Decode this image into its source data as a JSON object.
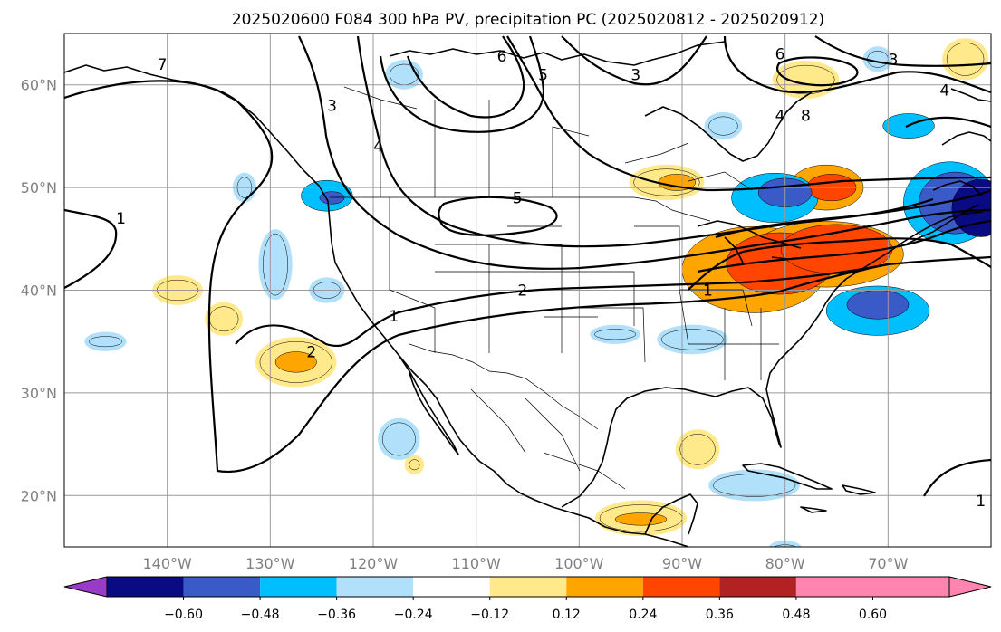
{
  "title": "2025020600 F084 300 hPa PV, precipitation PC (2025020812 - 2025020912)",
  "map": {
    "lon_range": [
      -150,
      -60
    ],
    "lat_range": [
      15,
      65
    ],
    "longitude_ticks": [
      {
        "lon": -140,
        "label": "140°W"
      },
      {
        "lon": -130,
        "label": "130°W"
      },
      {
        "lon": -120,
        "label": "120°W"
      },
      {
        "lon": -110,
        "label": "110°W"
      },
      {
        "lon": -100,
        "label": "100°W"
      },
      {
        "lon": -90,
        "label": "90°W"
      },
      {
        "lon": -80,
        "label": "80°W"
      },
      {
        "lon": -70,
        "label": "70°W"
      }
    ],
    "latitude_ticks": [
      {
        "lat": 20,
        "label": "20°N"
      },
      {
        "lat": 30,
        "label": "30°N"
      },
      {
        "lat": 40,
        "label": "40°N"
      },
      {
        "lat": 50,
        "label": "50°N"
      },
      {
        "lat": 60,
        "label": "60°N"
      }
    ],
    "gridlines": true
  },
  "colorbar": {
    "levels": [
      "−0.60",
      "−0.48",
      "−0.36",
      "−0.24",
      "−0.12",
      "0.12",
      "0.24",
      "0.36",
      "0.48",
      "0.60"
    ],
    "colors": [
      "#9a3bc8",
      "#0a0a82",
      "#3a5ac8",
      "#00bfff",
      "#b0e0fa",
      "#ffffff",
      "#ffe98a",
      "#ffa500",
      "#ff4500",
      "#b22222",
      "#ff85b0"
    ],
    "extend": "both"
  },
  "shading": [
    {
      "lon": -83,
      "lat": 42,
      "rx": 7,
      "ry": 4.2,
      "level": 0.36
    },
    {
      "lon": -80.5,
      "lat": 42.6,
      "rx": 5.2,
      "ry": 3,
      "level": 0.48
    },
    {
      "lon": -76,
      "lat": 43.5,
      "rx": 7.5,
      "ry": 3.2,
      "level": 0.36
    },
    {
      "lon": -75,
      "lat": 44,
      "rx": 5.4,
      "ry": 2.4,
      "level": 0.48
    },
    {
      "lon": -76,
      "lat": 50,
      "rx": 3.6,
      "ry": 2.2,
      "level": 0.36
    },
    {
      "lon": -75.5,
      "lat": 50,
      "rx": 2.4,
      "ry": 1.3,
      "level": 0.48
    },
    {
      "lon": -91.5,
      "lat": 50.5,
      "rx": 3.2,
      "ry": 1.3,
      "level": 0.24
    },
    {
      "lon": -90.5,
      "lat": 50.5,
      "rx": 1.8,
      "ry": 0.8,
      "level": 0.36
    },
    {
      "lon": -78,
      "lat": 60.5,
      "rx": 2.8,
      "ry": 1.4,
      "level": 0.24
    },
    {
      "lon": -62.5,
      "lat": 62.5,
      "rx": 1.8,
      "ry": 1.6,
      "level": 0.24
    },
    {
      "lon": -127.5,
      "lat": 33,
      "rx": 3.5,
      "ry": 2,
      "level": 0.24
    },
    {
      "lon": -127.5,
      "lat": 33,
      "rx": 2,
      "ry": 1,
      "level": 0.36
    },
    {
      "lon": -139,
      "lat": 40,
      "rx": 2,
      "ry": 1,
      "level": 0.24
    },
    {
      "lon": -134.5,
      "lat": 37.2,
      "rx": 1.4,
      "ry": 1.2,
      "level": 0.24
    },
    {
      "lon": -88.5,
      "lat": 24.5,
      "rx": 1.7,
      "ry": 1.5,
      "level": 0.24
    },
    {
      "lon": -94,
      "lat": 17.8,
      "rx": 4,
      "ry": 1.3,
      "level": 0.24
    },
    {
      "lon": -94,
      "lat": 17.7,
      "rx": 2.5,
      "ry": 0.6,
      "level": 0.36
    },
    {
      "lon": -116,
      "lat": 23,
      "rx": 0.5,
      "ry": 0.5,
      "level": 0.24
    },
    {
      "lon": -81,
      "lat": 49,
      "rx": 4.2,
      "ry": 2.4,
      "level": -0.36
    },
    {
      "lon": -80,
      "lat": 49.5,
      "rx": 2.6,
      "ry": 1.4,
      "level": -0.48
    },
    {
      "lon": -64,
      "lat": 48.5,
      "rx": 4.5,
      "ry": 4,
      "level": -0.36
    },
    {
      "lon": -63.5,
      "lat": 48.5,
      "rx": 3.5,
      "ry": 3,
      "level": -0.48
    },
    {
      "lon": -61,
      "lat": 48,
      "rx": 2.8,
      "ry": 2.8,
      "level": -0.6
    },
    {
      "lon": -71,
      "lat": 38,
      "rx": 5,
      "ry": 2.4,
      "level": -0.36
    },
    {
      "lon": -71,
      "lat": 38.6,
      "rx": 3,
      "ry": 1.4,
      "level": -0.48
    },
    {
      "lon": -124.5,
      "lat": 49.2,
      "rx": 2.5,
      "ry": 1.5,
      "level": -0.36
    },
    {
      "lon": -124,
      "lat": 49,
      "rx": 1.2,
      "ry": 0.6,
      "level": -0.48
    },
    {
      "lon": -124.5,
      "lat": 40,
      "rx": 1.3,
      "ry": 0.8,
      "level": -0.24
    },
    {
      "lon": -129.5,
      "lat": 42.5,
      "rx": 1.2,
      "ry": 3,
      "level": -0.24
    },
    {
      "lon": -117.5,
      "lat": 25.5,
      "rx": 1.6,
      "ry": 1.6,
      "level": -0.24
    },
    {
      "lon": -89,
      "lat": 35.2,
      "rx": 3,
      "ry": 1,
      "level": -0.24
    },
    {
      "lon": -96.5,
      "lat": 35.7,
      "rx": 2,
      "ry": 0.5,
      "level": -0.24
    },
    {
      "lon": -83,
      "lat": 21,
      "rx": 4,
      "ry": 1.1,
      "level": -0.24
    },
    {
      "lon": -86,
      "lat": 56,
      "rx": 1.4,
      "ry": 0.9,
      "level": -0.24
    },
    {
      "lon": -117,
      "lat": 61,
      "rx": 1.4,
      "ry": 1,
      "level": -0.24
    },
    {
      "lon": -68,
      "lat": 56,
      "rx": 2.5,
      "ry": 1.2,
      "level": -0.36
    },
    {
      "lon": -71,
      "lat": 62.5,
      "rx": 1,
      "ry": 0.8,
      "level": -0.24
    },
    {
      "lon": -132.5,
      "lat": 50,
      "rx": 0.7,
      "ry": 1,
      "level": -0.24
    },
    {
      "lon": -146,
      "lat": 35,
      "rx": 1.6,
      "ry": 0.5,
      "level": -0.24
    },
    {
      "lon": -80,
      "lat": 14.8,
      "rx": 1.2,
      "ry": 0.4,
      "level": -0.24
    }
  ],
  "pv_contour_labels": [
    {
      "text": "1",
      "lon": -144.5,
      "lat": 47
    },
    {
      "text": "1",
      "lon": -87.5,
      "lat": 40
    },
    {
      "text": "1",
      "lon": -61,
      "lat": 19.5
    },
    {
      "text": "2",
      "lon": -126,
      "lat": 34
    },
    {
      "text": "2",
      "lon": -105.5,
      "lat": 40
    },
    {
      "text": "3",
      "lon": -124,
      "lat": 58
    },
    {
      "text": "3",
      "lon": -94.5,
      "lat": 61
    },
    {
      "text": "3",
      "lon": -69.5,
      "lat": 62.5
    },
    {
      "text": "4",
      "lon": -119.5,
      "lat": 54
    },
    {
      "text": "4",
      "lon": -80.5,
      "lat": 57
    },
    {
      "text": "4",
      "lon": -64.5,
      "lat": 59.5
    },
    {
      "text": "5",
      "lon": -106,
      "lat": 49
    },
    {
      "text": "5",
      "lon": -103.5,
      "lat": 61
    },
    {
      "text": "6",
      "lon": -107.5,
      "lat": 62.8
    },
    {
      "text": "6",
      "lon": -80.5,
      "lat": 63
    },
    {
      "text": "7",
      "lon": -140.5,
      "lat": 62
    },
    {
      "text": "1",
      "lon": -118,
      "lat": 37.5
    },
    {
      "text": "8",
      "lon": -78,
      "lat": 57
    }
  ]
}
